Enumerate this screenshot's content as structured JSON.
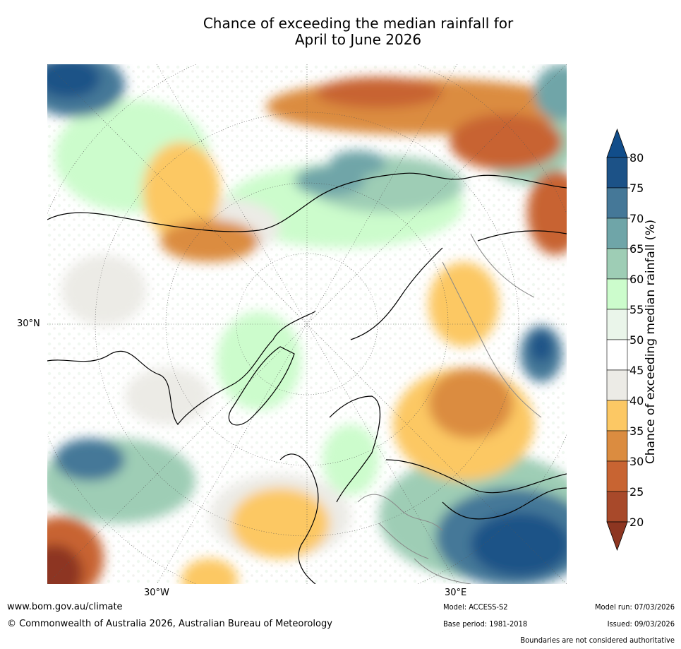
{
  "title": {
    "line1": "Chance of exceeding the median rainfall for",
    "line2": "April to June 2026"
  },
  "map": {
    "projection": "north-polar-stereographic",
    "lat_label": "30°N",
    "lon_labels": [
      "30°W",
      "30°E"
    ]
  },
  "colorbar": {
    "label": "Chance of exceeding median rainfall (%)",
    "ticks": [
      "80",
      "75",
      "70",
      "65",
      "60",
      "55",
      "50",
      "45",
      "40",
      "35",
      "30",
      "25",
      "20"
    ],
    "bins": [
      {
        "range": "75-80",
        "color": "#1c5287"
      },
      {
        "range": "70-75",
        "color": "#457898"
      },
      {
        "range": "65-70",
        "color": "#6fa5a8"
      },
      {
        "range": "60-65",
        "color": "#9ecdb5"
      },
      {
        "range": "55-60",
        "color": "#ccfccc"
      },
      {
        "range": "50-55",
        "color": "#eaf5ea"
      },
      {
        "range": "45-50",
        "color": "#ffffff"
      },
      {
        "range": "40-45",
        "color": "#ecebe6"
      },
      {
        "range": "35-40",
        "color": "#fcc864"
      },
      {
        "range": "30-35",
        "color": "#db8c40"
      },
      {
        "range": "25-30",
        "color": "#c86432"
      },
      {
        "range": "20-25",
        "color": "#a8492a"
      }
    ],
    "over_color": "#114d8a",
    "under_color": "#8d3621"
  },
  "footer": {
    "website": "www.bom.gov.au/climate",
    "copyright": "© Commonwealth of Australia 2026, Australian Bureau of Meteorology",
    "model": "Model: ACCESS-S2",
    "base_period": "Base period: 1981-2018",
    "model_run": "Model run: 07/03/2026",
    "issued": "Issued: 09/03/2026",
    "disclaimer": "Boundaries are not considered authoritative"
  }
}
